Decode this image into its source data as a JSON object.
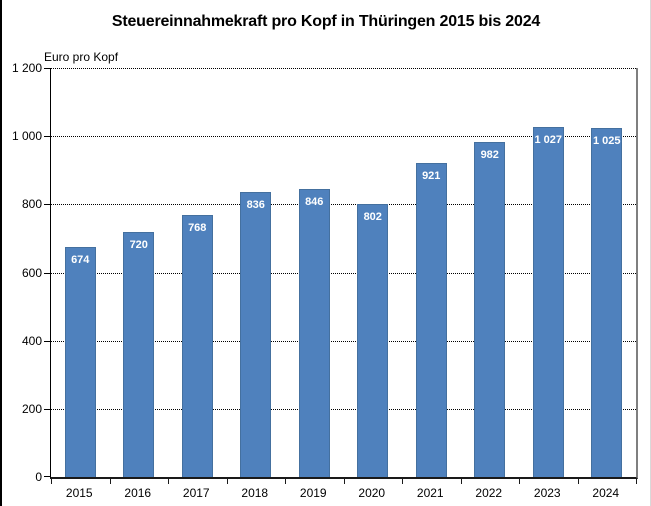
{
  "page": {
    "title": "Steuereinnahmekraft pro Kopf in Thüringen 2015 bis 2024"
  },
  "chart_data": {
    "type": "bar",
    "title": "Steuereinnahmekraft pro Kopf in Thüringen 2015 bis 2024",
    "ylabel": "Euro pro Kopf",
    "xlabel": "",
    "categories": [
      "2015",
      "2016",
      "2017",
      "2018",
      "2019",
      "2020",
      "2021",
      "2022",
      "2023",
      "2024"
    ],
    "values": [
      674,
      720,
      768,
      836,
      846,
      802,
      921,
      982,
      1027,
      1025
    ],
    "value_labels": [
      "674",
      "720",
      "768",
      "836",
      "846",
      "802",
      "921",
      "982",
      "1 027",
      "1 025"
    ],
    "ylim": [
      0,
      1200
    ],
    "ytick_step": 200,
    "ytick_labels": [
      "0",
      "200",
      "400",
      "600",
      "800",
      "1 000",
      "1 200"
    ],
    "grid": "horizontal-dotted",
    "legend": "none",
    "bar_color": "#4f81bd",
    "bar_label_color": "#ffffff"
  }
}
